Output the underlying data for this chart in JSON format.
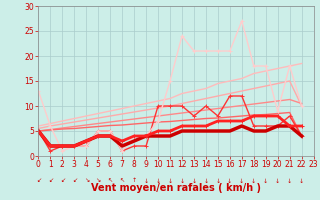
{
  "background_color": "#cceee8",
  "grid_color": "#aacccc",
  "xlabel": "Vent moyen/en rafales ( km/h )",
  "xlim": [
    0,
    23
  ],
  "ylim": [
    0,
    30
  ],
  "yticks": [
    0,
    5,
    10,
    15,
    20,
    25,
    30
  ],
  "xticks": [
    0,
    1,
    2,
    3,
    4,
    5,
    6,
    7,
    8,
    9,
    10,
    11,
    12,
    13,
    14,
    15,
    16,
    17,
    18,
    19,
    20,
    21,
    22,
    23
  ],
  "series": [
    {
      "note": "lightest pink - straight diagonal, highest slope",
      "x": [
        0,
        1,
        2,
        3,
        4,
        5,
        6,
        7,
        8,
        9,
        10,
        11,
        12,
        13,
        14,
        15,
        16,
        17,
        18,
        19,
        20,
        21,
        22
      ],
      "y": [
        6.0,
        6.5,
        7.0,
        7.5,
        8.0,
        8.5,
        9.0,
        9.5,
        10.0,
        10.5,
        11.0,
        11.5,
        12.5,
        13.0,
        13.5,
        14.5,
        15.0,
        15.5,
        16.5,
        17.0,
        17.5,
        18.0,
        18.5
      ],
      "color": "#ffbbbb",
      "lw": 1.0,
      "marker": null
    },
    {
      "note": "light pink straight - medium-high slope",
      "x": [
        0,
        1,
        2,
        3,
        4,
        5,
        6,
        7,
        8,
        9,
        10,
        11,
        12,
        13,
        14,
        15,
        16,
        17,
        18,
        19,
        20,
        21,
        22
      ],
      "y": [
        5.5,
        6.0,
        6.4,
        6.8,
        7.2,
        7.6,
        8.0,
        8.4,
        8.8,
        9.2,
        9.6,
        10.0,
        10.5,
        11.0,
        11.5,
        12.0,
        12.5,
        13.0,
        13.5,
        14.0,
        14.5,
        15.0,
        10.0
      ],
      "color": "#ffaaaa",
      "lw": 1.0,
      "marker": null
    },
    {
      "note": "medium pink straight - medium slope",
      "x": [
        0,
        1,
        2,
        3,
        4,
        5,
        6,
        7,
        8,
        9,
        10,
        11,
        12,
        13,
        14,
        15,
        16,
        17,
        18,
        19,
        20,
        21,
        22
      ],
      "y": [
        5.0,
        5.3,
        5.6,
        5.9,
        6.2,
        6.5,
        6.8,
        7.1,
        7.4,
        7.7,
        8.0,
        8.3,
        8.6,
        8.9,
        9.2,
        9.5,
        9.8,
        10.1,
        10.4,
        10.7,
        11.0,
        11.3,
        10.5
      ],
      "color": "#ff8888",
      "lw": 1.0,
      "marker": null
    },
    {
      "note": "medium-dark pink/red straight - lower slope",
      "x": [
        0,
        1,
        2,
        3,
        4,
        5,
        6,
        7,
        8,
        9,
        10,
        11,
        12,
        13,
        14,
        15,
        16,
        17,
        18,
        19,
        20,
        21,
        22
      ],
      "y": [
        5.0,
        5.2,
        5.4,
        5.5,
        5.7,
        5.9,
        6.1,
        6.2,
        6.4,
        6.6,
        6.8,
        6.9,
        7.1,
        7.3,
        7.5,
        7.6,
        7.8,
        8.0,
        8.2,
        8.3,
        8.5,
        8.7,
        4.0
      ],
      "color": "#ff6666",
      "lw": 1.0,
      "marker": null
    },
    {
      "note": "jagged bright red with + markers - peaks at 12, 17",
      "x": [
        0,
        1,
        2,
        3,
        4,
        5,
        6,
        7,
        8,
        9,
        10,
        11,
        12,
        13,
        14,
        15,
        16,
        17,
        18,
        19,
        20,
        21,
        22
      ],
      "y": [
        5,
        1,
        2,
        2,
        2,
        5,
        5,
        1,
        2,
        2,
        10,
        10,
        10,
        8,
        10,
        8,
        12,
        12,
        6,
        6,
        6,
        8,
        4
      ],
      "color": "#ff3333",
      "lw": 1.0,
      "marker": "+"
    },
    {
      "note": "lightest pink jagged with + markers - high peaks 11-17",
      "x": [
        0,
        1,
        2,
        3,
        4,
        5,
        6,
        7,
        8,
        9,
        10,
        11,
        12,
        13,
        14,
        15,
        16,
        17,
        18,
        19,
        20,
        21,
        22
      ],
      "y": [
        13,
        6,
        1,
        2,
        2,
        5,
        5,
        1,
        4,
        4,
        7,
        15,
        24,
        21,
        21,
        21,
        21,
        27,
        18,
        18,
        9,
        18,
        10
      ],
      "color": "#ffcccc",
      "lw": 1.0,
      "marker": "+"
    },
    {
      "note": "bold thick dark red - nearly flat, slight incline",
      "x": [
        0,
        1,
        2,
        3,
        4,
        5,
        6,
        7,
        8,
        9,
        10,
        11,
        12,
        13,
        14,
        15,
        16,
        17,
        18,
        19,
        20,
        21,
        22
      ],
      "y": [
        5,
        2,
        2,
        2,
        3,
        4,
        4,
        2,
        3,
        4,
        4,
        4,
        5,
        5,
        5,
        5,
        5,
        6,
        5,
        5,
        6,
        6,
        4
      ],
      "color": "#cc0000",
      "lw": 2.5,
      "marker": null
    },
    {
      "note": "bold thick medium red - slight incline",
      "x": [
        0,
        1,
        2,
        3,
        4,
        5,
        6,
        7,
        8,
        9,
        10,
        11,
        12,
        13,
        14,
        15,
        16,
        17,
        18,
        19,
        20,
        21,
        22
      ],
      "y": [
        5,
        2,
        2,
        2,
        3,
        4,
        4,
        3,
        4,
        4,
        5,
        5,
        6,
        6,
        6,
        7,
        7,
        7,
        8,
        8,
        8,
        6,
        6
      ],
      "color": "#ff2222",
      "lw": 2.0,
      "marker": "+"
    }
  ],
  "arrow_color": "#cc0000",
  "tick_fontsize": 5.5,
  "label_fontsize": 7,
  "axis_color": "#cc0000",
  "wind_symbols": [
    "arrowleft",
    "arrowleft",
    "arrowleft",
    "arrowleft",
    "arrowleft",
    "arrowleft",
    "arrowleft",
    "arrowleft",
    "arrowup",
    "arrowdown",
    "arrowdown",
    "arrowdown",
    "arrowdown",
    "arrowdown",
    "arrowdown",
    "arrowdown",
    "arrowdown",
    "arrowdown",
    "arrowdown",
    "arrowdown",
    "arrowdown",
    "arrowdown",
    "arrowdown"
  ]
}
